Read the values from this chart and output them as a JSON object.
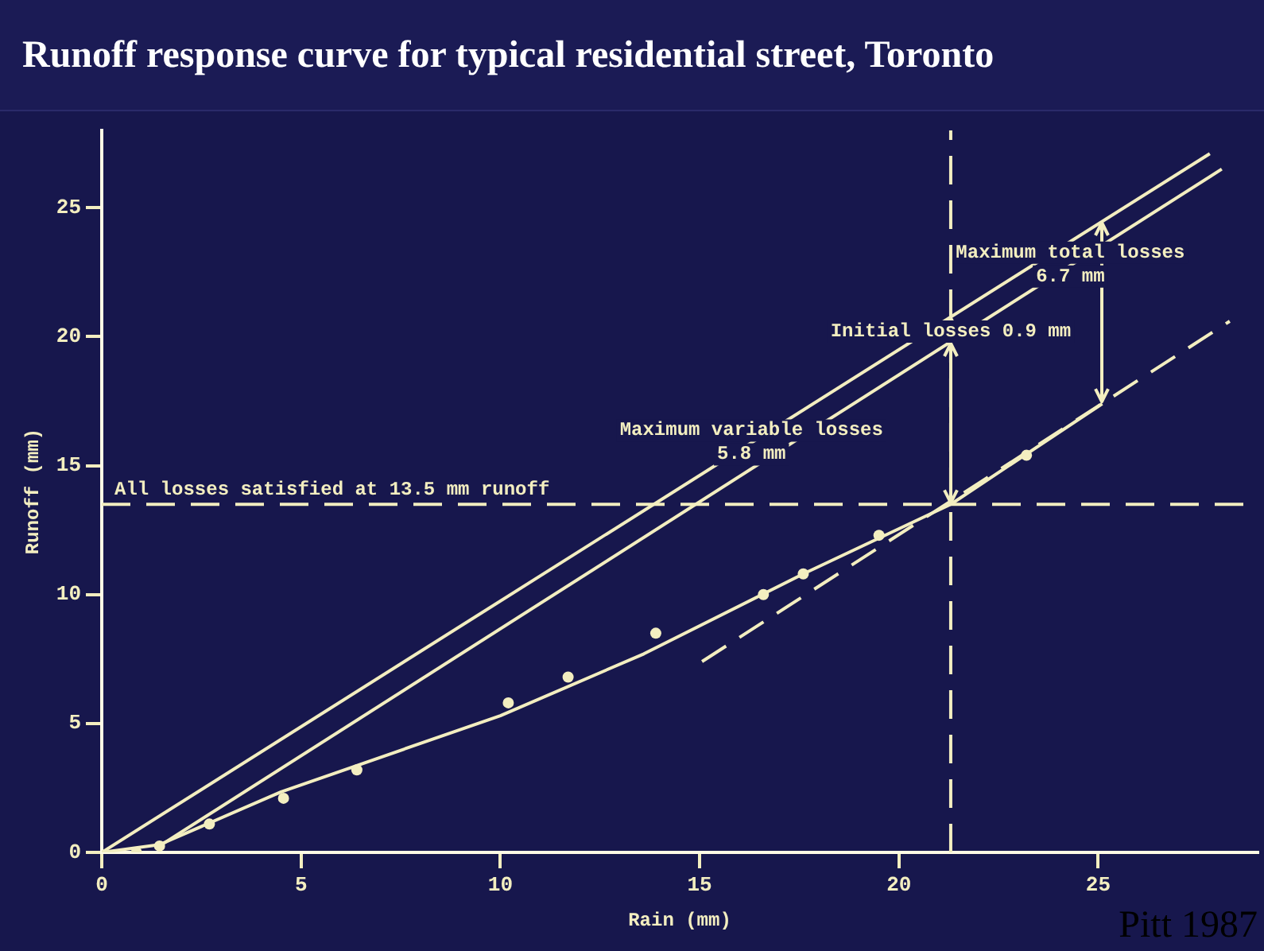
{
  "chart_data": {
    "type": "line",
    "title": "Runoff response curve for typical residential street, Toronto",
    "xlabel": "Rain (mm)",
    "ylabel": "Runoff (mm)",
    "xlim": [
      0,
      29
    ],
    "ylim": [
      0,
      28
    ],
    "xticks": [
      0,
      5,
      10,
      15,
      20,
      25
    ],
    "yticks": [
      0,
      5,
      10,
      15,
      20,
      25
    ],
    "grid": false,
    "legend": false,
    "series": [
      {
        "color": "#f3eec0",
        "x": [
          0,
          27.8
        ],
        "values": [
          0,
          27.1
        ],
        "marker": "none",
        "line_style": "solid"
      },
      {
        "color": "#f3eec0",
        "x": [
          1.45,
          28.1
        ],
        "values": [
          0.25,
          26.5
        ],
        "marker": "none",
        "line_style": "solid"
      },
      {
        "color": "#f3eec0",
        "x": [
          0,
          1.45,
          4.5,
          10,
          13.6,
          17.6,
          21.3,
          25.1
        ],
        "values": [
          0,
          0.3,
          2.35,
          5.3,
          7.7,
          10.8,
          13.5,
          17.4
        ],
        "marker": "none",
        "line_style": "solid"
      },
      {
        "color": "#f3eec0",
        "x": [
          15.06,
          28.3
        ],
        "values": [
          7.4,
          20.6
        ],
        "marker": "none",
        "line_style": "dashed"
      },
      {
        "type": "scatter",
        "color": "#f3eec0",
        "x": [
          0.87,
          1.45,
          2.7,
          4.56,
          6.4,
          10.2,
          11.7,
          13.9,
          16.6,
          17.6,
          19.5,
          23.2
        ],
        "values": [
          0,
          0.25,
          1.1,
          2.1,
          3.2,
          5.8,
          6.8,
          8.5,
          10,
          10.8,
          12.3,
          15.4
        ],
        "marker": "circle"
      }
    ],
    "ref_lines": [
      {
        "axis": "y",
        "value": 13.5,
        "label": "All losses satisfied at 13.5 mm runoff",
        "color": "#f3eec0",
        "line_style": "dashed"
      },
      {
        "axis": "x",
        "value": 21.3,
        "label": null,
        "color": "#f3eec0",
        "line_style": "dashed"
      }
    ],
    "annotations": [
      {
        "text": "Maximum total losses\n6.7 mm",
        "x": 24.3,
        "y": 22.8
      },
      {
        "text": "Initial losses 0.9 mm",
        "x": 21.3,
        "y": 20.2
      },
      {
        "text": "Maximum variable losses\n5.8 mm",
        "x": 16.3,
        "y": 15.9
      },
      "Pitt 1987"
    ]
  }
}
